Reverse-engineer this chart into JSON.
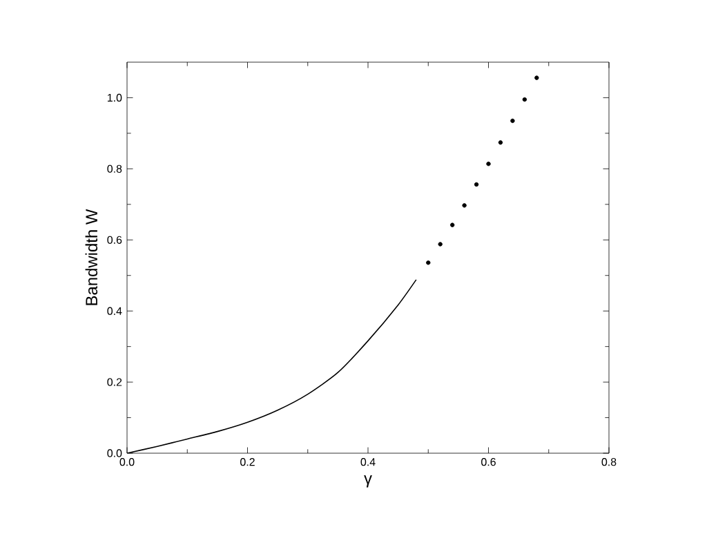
{
  "chart_data": {
    "type": "line",
    "xlabel": "γ",
    "ylabel": "Bandwidth W",
    "xlim": [
      0,
      0.8
    ],
    "ylim": [
      0,
      1.1
    ],
    "xticks": [
      {
        "value": 0,
        "label": "0.0"
      },
      0.2,
      0.4,
      0.6,
      0.8
    ],
    "yticks": [
      {
        "value": 0,
        "label": "0.0"
      },
      0.2,
      0.4,
      0.6,
      0.8,
      {
        "value": 1.0,
        "label": "1.0"
      }
    ],
    "series": [
      {
        "color": "#000000",
        "marker": "none",
        "line_style": "solid",
        "x": [
          0,
          0.05,
          0.1,
          0.15,
          0.2,
          0.25,
          0.3,
          0.35,
          0.4,
          0.45,
          0.48
        ],
        "values": [
          0,
          0.019,
          0.04,
          0.061,
          0.087,
          0.121,
          0.166,
          0.227,
          0.316,
          0.417,
          0.488
        ]
      },
      {
        "type": "scatter",
        "color": "#000000",
        "marker": "circle",
        "x": [
          0.5,
          0.52,
          0.54,
          0.56,
          0.58,
          0.6,
          0.62,
          0.64,
          0.66,
          0.68
        ],
        "values": [
          0.536,
          0.588,
          0.642,
          0.697,
          0.756,
          0.814,
          0.874,
          0.935,
          0.995,
          1.056
        ]
      }
    ]
  }
}
